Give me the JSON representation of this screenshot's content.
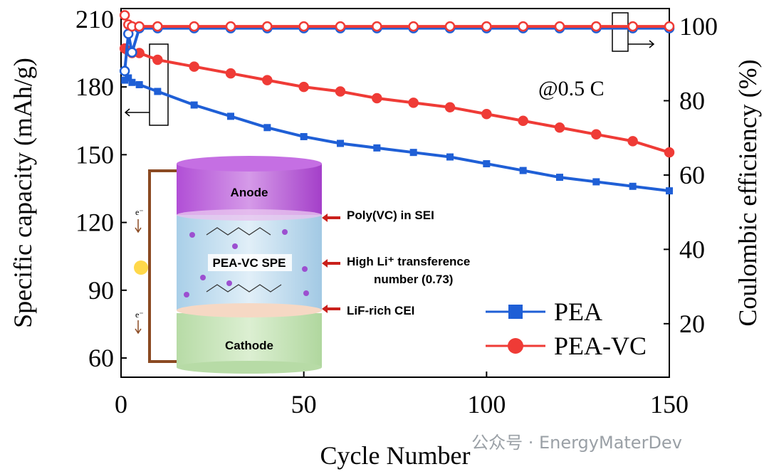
{
  "chart_data": {
    "type": "line",
    "x": [
      1,
      2,
      3,
      5,
      10,
      20,
      30,
      40,
      50,
      60,
      70,
      80,
      90,
      100,
      110,
      120,
      130,
      140,
      150
    ],
    "xlim": [
      0,
      150
    ],
    "xticks": [
      0,
      50,
      100,
      150
    ],
    "ylim": [
      51.5,
      214.7
    ],
    "yticks": [
      60,
      90,
      120,
      150,
      180,
      210
    ],
    "y2lim": [
      5.6,
      104.8
    ],
    "y2ticks": [
      20,
      40,
      60,
      80,
      100
    ],
    "x_label": "Cycle Number",
    "y_label": "Specific capacity (mAh/g)",
    "y2_label": "Coulombic efficiency (%)",
    "annotation": "@0.5 C",
    "series": [
      {
        "name": "PEA",
        "color": "#1f5fd6",
        "marker": "square",
        "values": [
          183,
          184,
          182,
          181,
          178,
          172,
          167,
          162,
          158,
          155,
          153,
          151,
          149,
          146,
          143,
          140,
          138,
          136,
          134
        ]
      },
      {
        "name": "PEA-VC",
        "color": "#ef3b36",
        "marker": "circle",
        "values": [
          197,
          196,
          195,
          195,
          192,
          189,
          186,
          183,
          180,
          178,
          175,
          173,
          171,
          168,
          165,
          162,
          159,
          156,
          151
        ]
      }
    ],
    "efficiency_series": [
      {
        "color": "#1f5fd6",
        "axis": "y2",
        "values": [
          88,
          98,
          93,
          99.5,
          99.5,
          99.5,
          99.5,
          99.5,
          99.5,
          99.5,
          99.5,
          99.5,
          99.5,
          99.5,
          99.5,
          99.5,
          99.5,
          99.5,
          99.5
        ]
      },
      {
        "color": "#ef3b36",
        "axis": "y2",
        "values": [
          103,
          100.5,
          100,
          100,
          100,
          100,
          100,
          100,
          100,
          100,
          100,
          100,
          100,
          100,
          100,
          100,
          100,
          100,
          100
        ]
      }
    ],
    "inset": {
      "anode": "Anode",
      "cathode": "Cathode",
      "electrolyte": "PEA-VC SPE",
      "sei": "Poly(VC) in SEI",
      "transference": [
        "High Li⁺ transference",
        "number (0.73)"
      ],
      "cei": "LiF-rich CEI",
      "electron": "e⁻"
    },
    "watermark": "公众号 · EnergyMaterDev"
  }
}
